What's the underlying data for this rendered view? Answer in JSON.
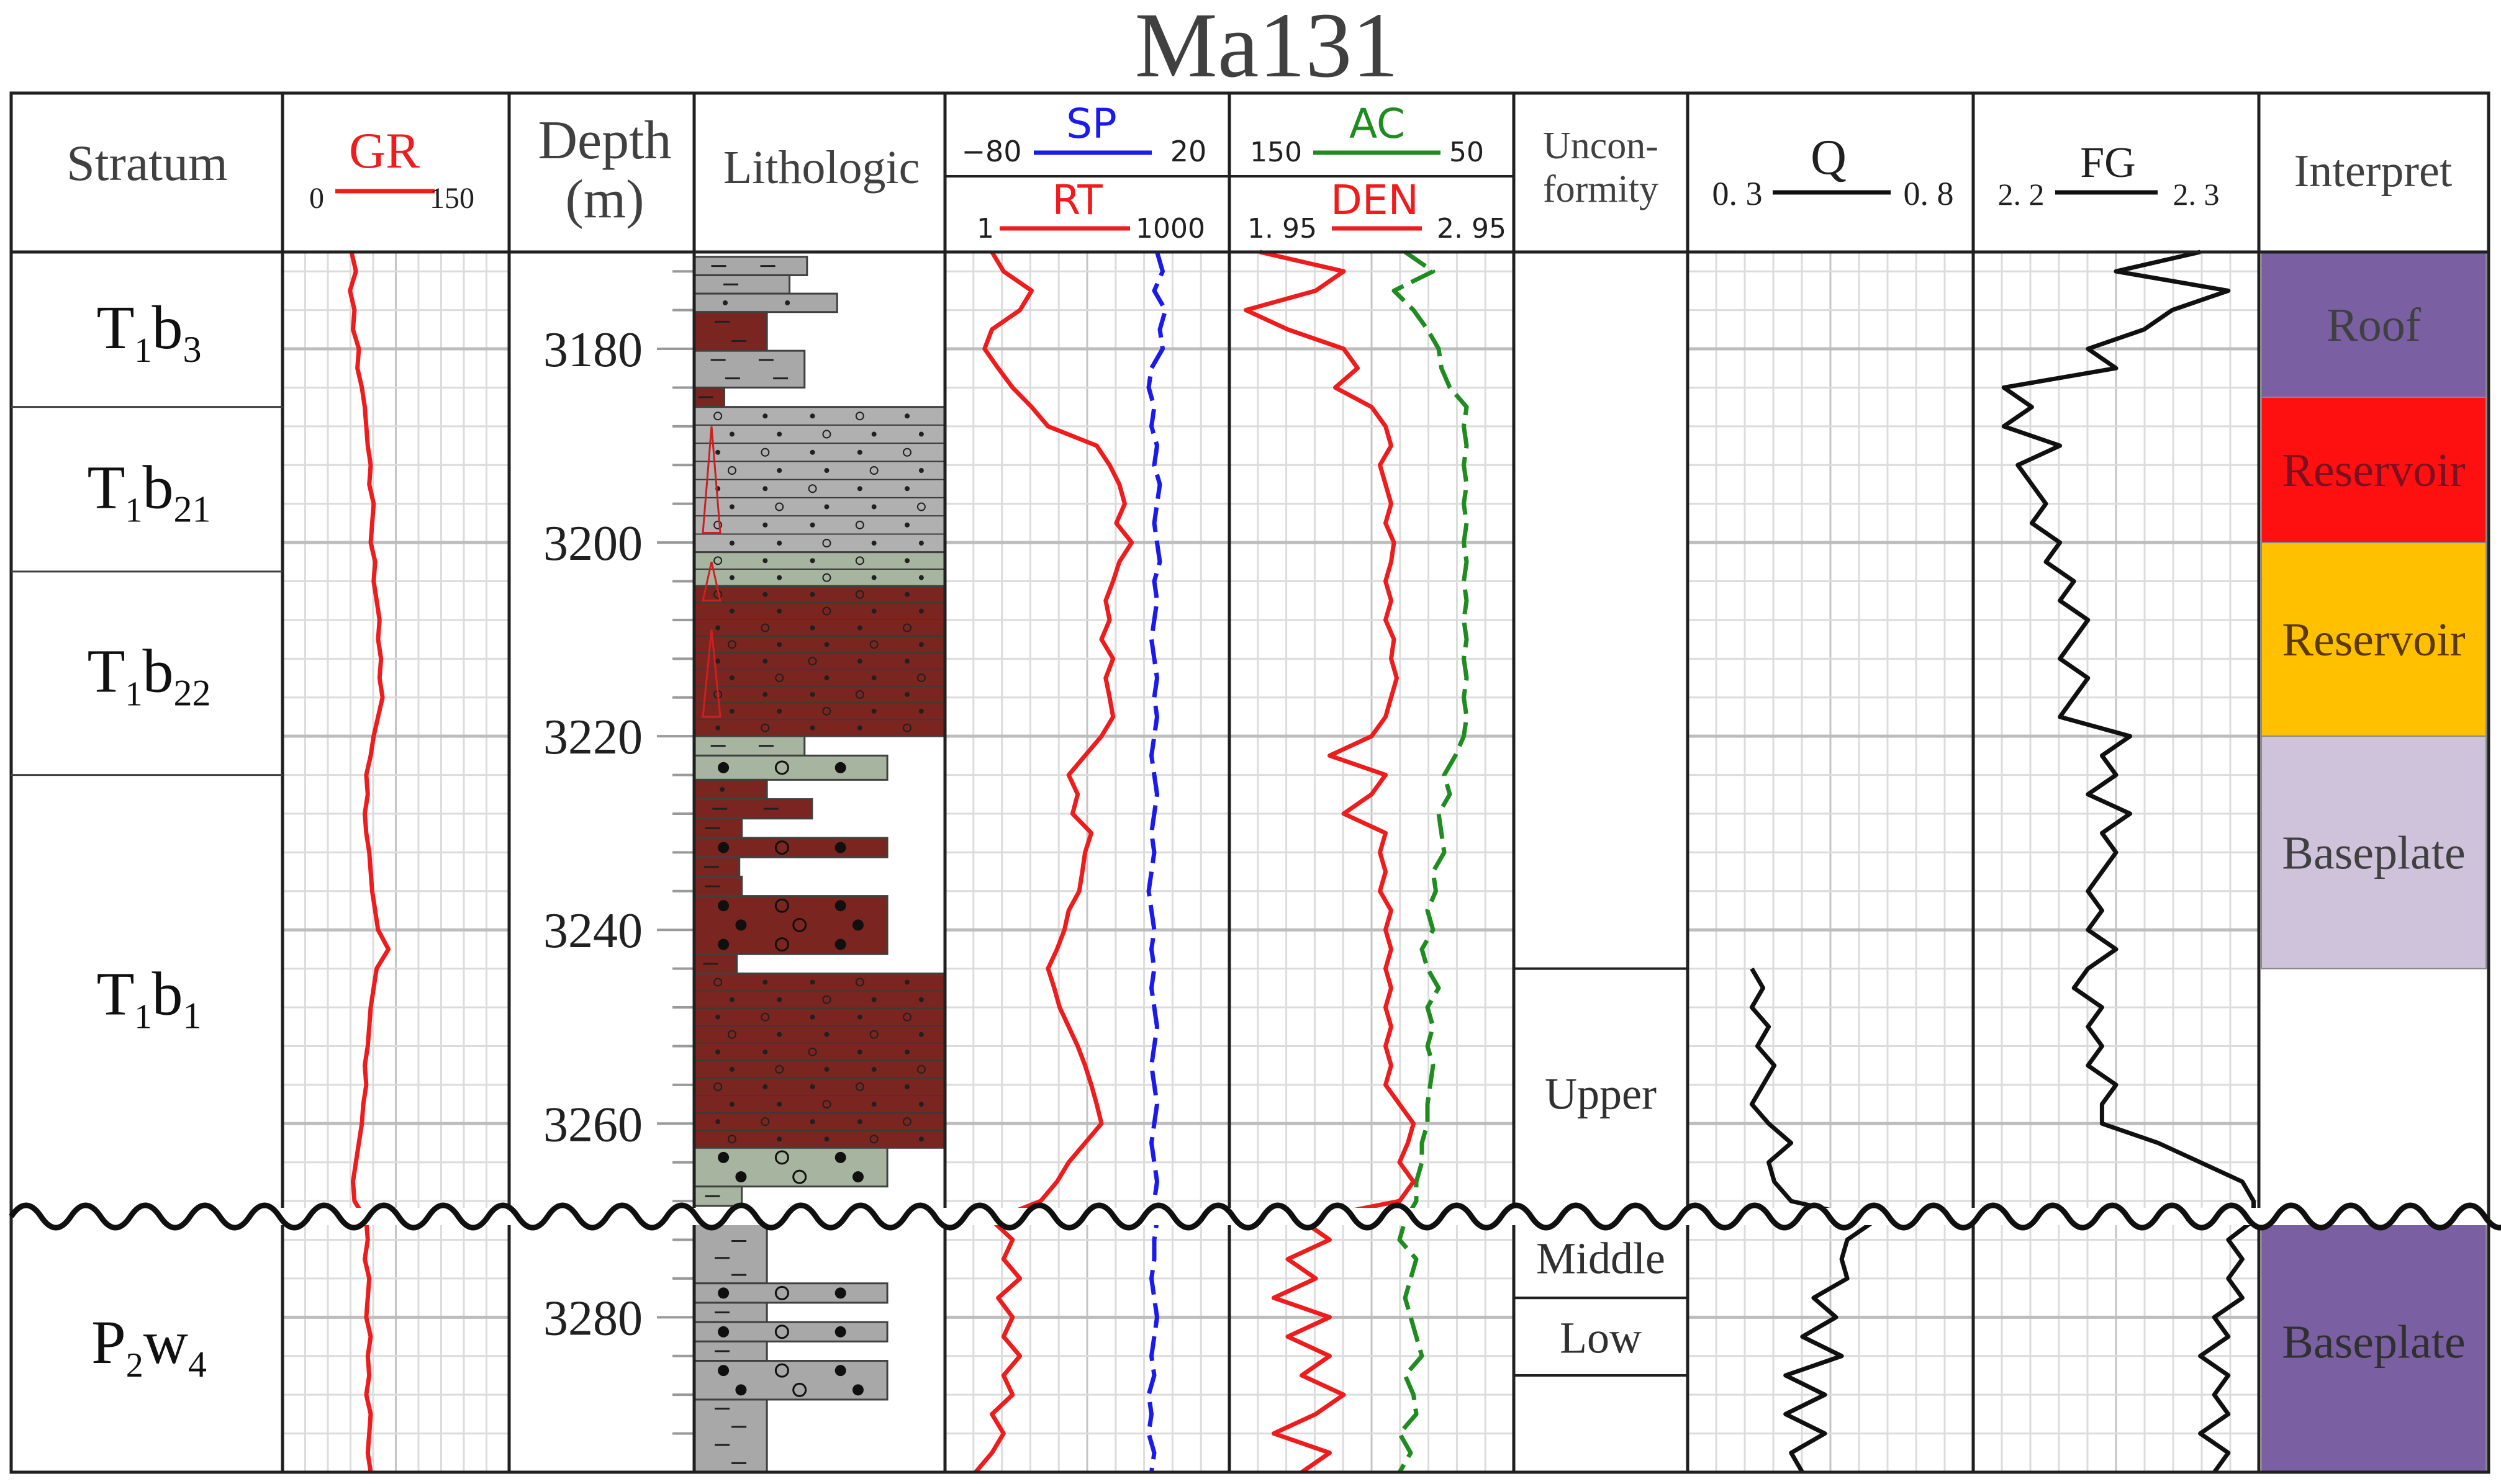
{
  "title": "Ma131",
  "columns": {
    "stratum": "Stratum",
    "gr": {
      "label": "GR",
      "min": "0",
      "max": "150",
      "color": "#ee1c1c"
    },
    "depth": {
      "label": "Depth",
      "unit": "(m)"
    },
    "lithologic": "Lithologic",
    "sp": {
      "label": "SP",
      "min": "−80",
      "max": "20",
      "color": "#1a1aee"
    },
    "rt": {
      "label": "RT",
      "min": "1",
      "max": "1000",
      "color": "#ee1c1c"
    },
    "ac": {
      "label": "AC",
      "min": "150",
      "max": "50",
      "color": "#1e8c1e"
    },
    "den": {
      "label": "DEN",
      "min": "1. 95",
      "max": "2. 95",
      "color": "#ee1c1c"
    },
    "unconformity": {
      "line1": "Uncon-",
      "line2": "formity"
    },
    "q": {
      "label": "Q",
      "min": "0. 3",
      "max": "0. 8"
    },
    "fg": {
      "label": "FG",
      "min": "2. 2",
      "max": "2. 3"
    },
    "interpret": "Interpret"
  },
  "strata": [
    {
      "main": "T",
      "sub1": "1",
      "b": "b",
      "sub2": "3",
      "top": 3170,
      "bottom": 3186
    },
    {
      "main": "T",
      "sub1": "1",
      "b": "b",
      "sub2": "21",
      "top": 3186,
      "bottom": 3203
    },
    {
      "main": "T",
      "sub1": "1",
      "b": "b",
      "sub2": "22",
      "top": 3203,
      "bottom": 3224
    },
    {
      "main": "T",
      "sub1": "1",
      "b": "b",
      "sub2": "1",
      "top": 3224,
      "bottom": 3269
    },
    {
      "main": "P",
      "sub1": "2",
      "b": "w",
      "sub2": "4",
      "top": 3269,
      "bottom": 3296
    }
  ],
  "depth_ticks": [
    "3180",
    "3200",
    "3220",
    "3240",
    "3260",
    "3280"
  ],
  "unconformity_zones": [
    {
      "label": "Upper",
      "top": 3244,
      "bottom": 3269
    },
    {
      "label": "Middle",
      "top": 3269,
      "bottom": 3278
    },
    {
      "label": "Low",
      "top": 3278,
      "bottom": 3286
    }
  ],
  "interpret_zones": [
    {
      "label": "Roof",
      "top": 3170,
      "bottom": 3185,
      "color": "#7b5fa3",
      "text_color": "#404040"
    },
    {
      "label": "Reservoir",
      "top": 3185,
      "bottom": 3200,
      "color": "#ff1010",
      "text_color": "#7a1020"
    },
    {
      "label": "Reservoir",
      "top": 3200,
      "bottom": 3220,
      "color": "#ffc000",
      "text_color": "#5a3a00"
    },
    {
      "label": "Baseplate",
      "top": 3220,
      "bottom": 3244,
      "color": "#cfc3dc",
      "text_color": "#404040"
    },
    {
      "label": "Baseplate",
      "top": 3269,
      "bottom": 3296,
      "color": "#7b5fa3",
      "text_color": "#303030"
    }
  ],
  "lithology": [
    {
      "top": 3170.5,
      "bottom": 3172.4,
      "width": 0.45,
      "color": "#a8a8a8",
      "pattern": "dash"
    },
    {
      "top": 3172.4,
      "bottom": 3174.3,
      "width": 0.38,
      "color": "#a8a8a8",
      "pattern": "dash"
    },
    {
      "top": 3174.3,
      "bottom": 3176.2,
      "width": 0.57,
      "color": "#a8a8a8",
      "pattern": "dot"
    },
    {
      "top": 3176.2,
      "bottom": 3180.2,
      "width": 0.29,
      "color": "#7b2520",
      "pattern": "dash"
    },
    {
      "top": 3180.2,
      "bottom": 3184.0,
      "width": 0.44,
      "color": "#a8a8a8",
      "pattern": "dash"
    },
    {
      "top": 3184.0,
      "bottom": 3186.0,
      "width": 0.12,
      "color": "#7b2520",
      "pattern": "dash"
    },
    {
      "top": 3186.0,
      "bottom": 3201.0,
      "width": 1.0,
      "color": "#b0b0b0",
      "pattern": "sand"
    },
    {
      "top": 3201.0,
      "bottom": 3204.5,
      "width": 1.0,
      "color": "#a7b5a0",
      "pattern": "sand"
    },
    {
      "top": 3204.5,
      "bottom": 3220.0,
      "width": 1.0,
      "color": "#7b2520",
      "pattern": "sand"
    },
    {
      "top": 3220.0,
      "bottom": 3222.0,
      "width": 0.44,
      "color": "#a7b5a0",
      "pattern": "dash"
    },
    {
      "top": 3222.0,
      "bottom": 3224.5,
      "width": 0.77,
      "color": "#a7b5a0",
      "pattern": "pebble"
    },
    {
      "top": 3224.5,
      "bottom": 3226.5,
      "width": 0.29,
      "color": "#7b2520",
      "pattern": "dot"
    },
    {
      "top": 3226.5,
      "bottom": 3228.5,
      "width": 0.47,
      "color": "#7b2520",
      "pattern": "dash"
    },
    {
      "top": 3228.5,
      "bottom": 3230.5,
      "width": 0.19,
      "color": "#7b2520",
      "pattern": "dash"
    },
    {
      "top": 3230.5,
      "bottom": 3232.5,
      "width": 0.77,
      "color": "#7b2520",
      "pattern": "pebble"
    },
    {
      "top": 3232.5,
      "bottom": 3234.5,
      "width": 0.18,
      "color": "#7b2520",
      "pattern": "dash"
    },
    {
      "top": 3234.5,
      "bottom": 3236.5,
      "width": 0.19,
      "color": "#7b2520",
      "pattern": "dash"
    },
    {
      "top": 3236.5,
      "bottom": 3242.5,
      "width": 0.77,
      "color": "#7b2520",
      "pattern": "pebble"
    },
    {
      "top": 3242.5,
      "bottom": 3244.5,
      "width": 0.17,
      "color": "#7b2520",
      "pattern": "dash"
    },
    {
      "top": 3244.5,
      "bottom": 3262.5,
      "width": 1.0,
      "color": "#7b2520",
      "pattern": "sand"
    },
    {
      "top": 3262.5,
      "bottom": 3266.5,
      "width": 0.77,
      "color": "#a7b5a0",
      "pattern": "pebble"
    },
    {
      "top": 3266.5,
      "bottom": 3268.5,
      "width": 0.19,
      "color": "#a7b5a0",
      "pattern": "dash"
    },
    {
      "top": 3269.5,
      "bottom": 3276.5,
      "width": 0.29,
      "color": "#a8a8a8",
      "pattern": "dash"
    },
    {
      "top": 3276.5,
      "bottom": 3278.5,
      "width": 0.77,
      "color": "#a8a8a8",
      "pattern": "pebble"
    },
    {
      "top": 3278.5,
      "bottom": 3280.5,
      "width": 0.29,
      "color": "#a8a8a8",
      "pattern": "dash"
    },
    {
      "top": 3280.5,
      "bottom": 3282.5,
      "width": 0.77,
      "color": "#a8a8a8",
      "pattern": "pebble"
    },
    {
      "top": 3282.5,
      "bottom": 3284.5,
      "width": 0.29,
      "color": "#a8a8a8",
      "pattern": "dash"
    },
    {
      "top": 3284.5,
      "bottom": 3288.5,
      "width": 0.77,
      "color": "#a8a8a8",
      "pattern": "pebble"
    },
    {
      "top": 3288.5,
      "bottom": 3296.0,
      "width": 0.29,
      "color": "#a8a8a8",
      "pattern": "dash"
    }
  ],
  "chart_data": {
    "type": "line",
    "title": "Ma131",
    "ylabel": "Depth (m)",
    "y_range": [
      3170,
      3296
    ],
    "depth": [
      3170,
      3172,
      3174,
      3176,
      3178,
      3180,
      3182,
      3184,
      3186,
      3188,
      3190,
      3192,
      3194,
      3196,
      3198,
      3200,
      3202,
      3204,
      3206,
      3208,
      3210,
      3212,
      3214,
      3216,
      3218,
      3220,
      3222,
      3224,
      3226,
      3228,
      3230,
      3232,
      3234,
      3236,
      3238,
      3240,
      3242,
      3244,
      3246,
      3248,
      3250,
      3252,
      3254,
      3256,
      3258,
      3260,
      3262,
      3264,
      3266,
      3268,
      3270,
      3272,
      3274,
      3276,
      3278,
      3280,
      3282,
      3284,
      3286,
      3288,
      3290,
      3292,
      3294,
      3296
    ],
    "series": [
      {
        "name": "GR",
        "range": [
          0,
          150
        ],
        "values": [
          45,
          48,
          44,
          47,
          46,
          50,
          49,
          52,
          54,
          55,
          56,
          58,
          57,
          60,
          59,
          58,
          61,
          60,
          62,
          64,
          63,
          65,
          64,
          66,
          63,
          60,
          58,
          55,
          56,
          54,
          55,
          57,
          58,
          59,
          61,
          63,
          70,
          62,
          60,
          58,
          57,
          56,
          54,
          55,
          53,
          52,
          50,
          48,
          46,
          47,
          55,
          56,
          54,
          57,
          56,
          55,
          58,
          56,
          57,
          55,
          58,
          57,
          56,
          58
        ]
      },
      {
        "name": "SP",
        "range": [
          -80,
          20
        ],
        "values": [
          -5,
          -3,
          -6,
          -2,
          -4,
          -3,
          -7,
          -8,
          -6,
          -7,
          -5,
          -6,
          -4,
          -5,
          -6,
          -5,
          -4,
          -6,
          -5,
          -6,
          -7,
          -6,
          -5,
          -6,
          -5,
          -6,
          -7,
          -6,
          -5,
          -6,
          -7,
          -6,
          -7,
          -8,
          -7,
          -6,
          -7,
          -6,
          -7,
          -6,
          -5,
          -6,
          -7,
          -6,
          -5,
          -6,
          -7,
          -6,
          -5,
          -6,
          -5,
          -6,
          -6,
          -7,
          -6,
          -5,
          -6,
          -7,
          -6,
          -8,
          -7,
          -8,
          -6,
          -7
        ]
      },
      {
        "name": "RT",
        "range": [
          1,
          1000
        ],
        "log": true,
        "values": [
          3,
          4,
          8,
          6,
          3,
          2.5,
          3.5,
          5,
          8,
          12,
          40,
          55,
          70,
          80,
          65,
          95,
          70,
          60,
          50,
          55,
          45,
          60,
          50,
          55,
          60,
          45,
          30,
          20,
          25,
          22,
          35,
          30,
          28,
          26,
          20,
          18,
          15,
          12,
          14,
          16,
          20,
          25,
          30,
          35,
          40,
          45,
          30,
          20,
          15,
          10,
          3,
          5,
          4,
          6,
          3.5,
          5,
          4,
          6,
          4,
          5,
          3,
          4,
          3,
          2
        ]
      },
      {
        "name": "AC",
        "range": [
          150,
          50
        ],
        "values": [
          88,
          78,
          92,
          85,
          80,
          76,
          75,
          72,
          66,
          67,
          66,
          67,
          66,
          67,
          66,
          67,
          66,
          67,
          66,
          67,
          66,
          67,
          66,
          67,
          66,
          67,
          70,
          74,
          72,
          76,
          75,
          74,
          78,
          77,
          80,
          78,
          82,
          80,
          76,
          80,
          78,
          80,
          78,
          79,
          80,
          80,
          82,
          82,
          84,
          84,
          88,
          90,
          84,
          86,
          88,
          86,
          84,
          82,
          88,
          85,
          84,
          90,
          86,
          90
        ]
      },
      {
        "name": "DEN",
        "range": [
          1.95,
          2.95
        ],
        "values": [
          2.05,
          2.35,
          2.25,
          2.0,
          2.15,
          2.35,
          2.4,
          2.32,
          2.45,
          2.5,
          2.52,
          2.48,
          2.5,
          2.52,
          2.5,
          2.53,
          2.52,
          2.5,
          2.52,
          2.5,
          2.53,
          2.52,
          2.54,
          2.52,
          2.5,
          2.45,
          2.3,
          2.5,
          2.45,
          2.35,
          2.5,
          2.48,
          2.5,
          2.48,
          2.52,
          2.5,
          2.52,
          2.5,
          2.52,
          2.5,
          2.52,
          2.5,
          2.52,
          2.5,
          2.55,
          2.6,
          2.58,
          2.55,
          2.6,
          2.55,
          2.2,
          2.3,
          2.15,
          2.25,
          2.1,
          2.3,
          2.15,
          2.3,
          2.2,
          2.35,
          2.25,
          2.1,
          2.3,
          2.2
        ]
      },
      {
        "name": "Q",
        "range": [
          0.3,
          0.8
        ],
        "values": [
          null,
          null,
          null,
          null,
          null,
          null,
          null,
          null,
          null,
          null,
          null,
          null,
          null,
          null,
          null,
          null,
          null,
          null,
          null,
          null,
          null,
          null,
          null,
          null,
          null,
          null,
          null,
          null,
          null,
          null,
          null,
          null,
          null,
          null,
          null,
          null,
          null,
          0.41,
          0.43,
          0.41,
          0.44,
          0.42,
          0.45,
          0.43,
          0.41,
          0.44,
          0.48,
          0.44,
          0.45,
          0.48,
          0.63,
          0.58,
          0.57,
          0.58,
          0.52,
          0.56,
          0.5,
          0.57,
          0.47,
          0.54,
          0.47,
          0.54,
          0.48,
          0.5
        ]
      },
      {
        "name": "FG",
        "range": [
          2.2,
          2.3
        ],
        "values": [
          2.28,
          2.25,
          2.29,
          2.27,
          2.26,
          2.24,
          2.25,
          2.21,
          2.22,
          2.21,
          2.23,
          2.215,
          2.22,
          2.225,
          2.22,
          2.23,
          2.225,
          2.235,
          2.23,
          2.24,
          2.235,
          2.23,
          2.24,
          2.235,
          2.23,
          2.255,
          2.245,
          2.25,
          2.24,
          2.255,
          2.245,
          2.25,
          2.245,
          2.24,
          2.245,
          2.24,
          2.25,
          2.24,
          2.235,
          2.245,
          2.24,
          2.245,
          2.24,
          2.25,
          2.245,
          2.245,
          2.265,
          2.28,
          2.295,
          2.299,
          2.299,
          2.29,
          2.295,
          2.29,
          2.295,
          2.285,
          2.29,
          2.28,
          2.29,
          2.285,
          2.29,
          2.28,
          2.29,
          2.285
        ]
      }
    ]
  }
}
